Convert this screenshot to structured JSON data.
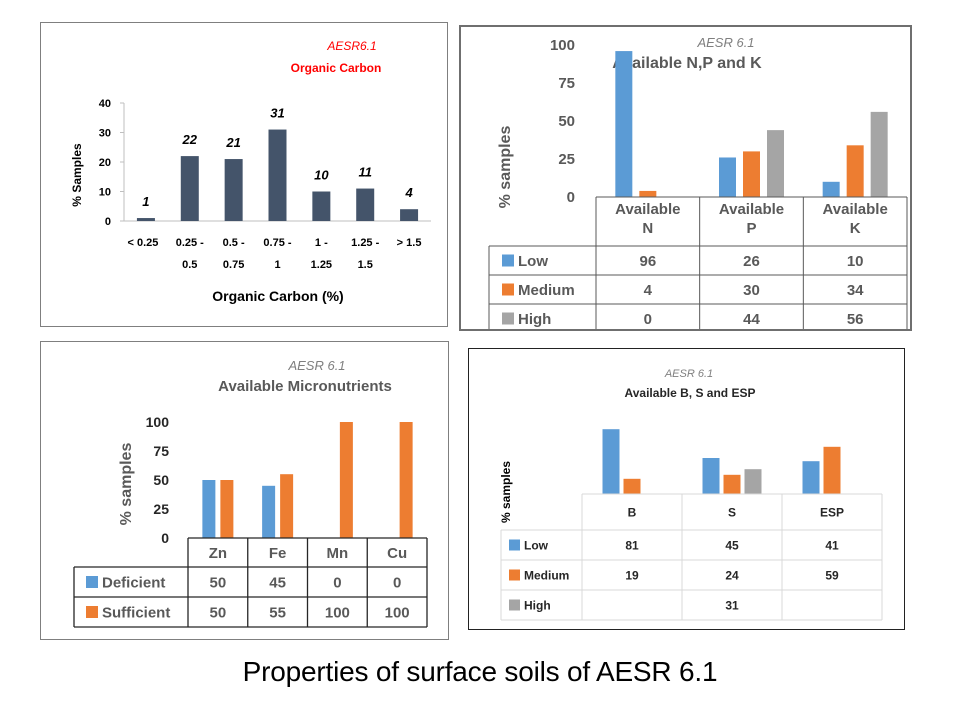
{
  "caption": "Properties of surface soils of AESR 6.1",
  "colors": {
    "low": "#5b9bd5",
    "medium": "#ed7d31",
    "high": "#a5a5a5",
    "navy": "#44546a",
    "red": "#ff0000"
  },
  "chart_data": [
    {
      "id": "organic-carbon",
      "type": "bar",
      "title": "Organic Carbon",
      "subtitle": "AESR6.1",
      "xlabel": "Organic Carbon (%)",
      "ylabel": "% Samples",
      "ylim": [
        0,
        40
      ],
      "yticks": [
        0,
        10,
        20,
        30,
        40
      ],
      "categories": [
        "< 0.25",
        "0.25 - 0.5",
        "0.5 - 0.75",
        "0.75 - 1",
        "1 - 1.25",
        "1.25 - 1.5",
        "> 1.5"
      ],
      "category_lines": [
        [
          "< 0.25"
        ],
        [
          "0.25 -",
          "0.5"
        ],
        [
          "0.5 -",
          "0.75"
        ],
        [
          "0.75 -",
          "1"
        ],
        [
          "1 -",
          "1.25"
        ],
        [
          "1.25 -",
          "1.5"
        ],
        [
          "> 1.5"
        ]
      ],
      "values": [
        1,
        22,
        21,
        31,
        10,
        11,
        4
      ],
      "data_labels": [
        "1",
        "22",
        "21",
        "31",
        "10",
        "11",
        "4"
      ]
    },
    {
      "id": "npk",
      "type": "bar",
      "title": "Available N,P and K",
      "subtitle": "AESR 6.1",
      "ylabel": "% samples",
      "ylim": [
        0,
        100
      ],
      "yticks": [
        0,
        25,
        50,
        75,
        100
      ],
      "categories": [
        "Available N",
        "Available P",
        "Available K"
      ],
      "category_lines": [
        [
          "Available",
          "N"
        ],
        [
          "Available",
          "P"
        ],
        [
          "Available",
          "K"
        ]
      ],
      "series": [
        {
          "name": "Low",
          "values": [
            96,
            26,
            10
          ],
          "labels": [
            "96",
            "26",
            "10"
          ]
        },
        {
          "name": "Medium",
          "values": [
            4,
            30,
            34
          ],
          "labels": [
            "4",
            "30",
            "34"
          ]
        },
        {
          "name": "High",
          "values": [
            0,
            44,
            56
          ],
          "labels": [
            "0",
            "44",
            "56"
          ]
        }
      ],
      "legend": "data-table"
    },
    {
      "id": "micronutrients",
      "type": "bar",
      "title": "Available Micronutrients",
      "subtitle": "AESR 6.1",
      "ylabel": "% samples",
      "ylim": [
        0,
        100
      ],
      "yticks": [
        0,
        25,
        50,
        75,
        100
      ],
      "categories": [
        "Zn",
        "Fe",
        "Mn",
        "Cu"
      ],
      "category_lines": [
        [
          "Zn"
        ],
        [
          "Fe"
        ],
        [
          "Mn"
        ],
        [
          "Cu"
        ]
      ],
      "series": [
        {
          "name": "Deficient",
          "values": [
            50,
            45,
            0,
            0
          ],
          "labels": [
            "50",
            "45",
            "0",
            "0"
          ]
        },
        {
          "name": "Sufficient",
          "values": [
            50,
            55,
            100,
            100
          ],
          "labels": [
            "50",
            "55",
            "100",
            "100"
          ]
        }
      ],
      "legend": "data-table"
    },
    {
      "id": "bs-esp",
      "type": "bar",
      "title": "Available B, S and ESP",
      "subtitle": "AESR 6.1",
      "ylabel": "% samples",
      "ylim": [
        0,
        100
      ],
      "categories": [
        "B",
        "S",
        "ESP"
      ],
      "category_lines": [
        [
          "B"
        ],
        [
          "S"
        ],
        [
          "ESP"
        ]
      ],
      "series": [
        {
          "name": "Low",
          "values": [
            81,
            45,
            41
          ],
          "labels": [
            "81",
            "45",
            "41"
          ]
        },
        {
          "name": "Medium",
          "values": [
            19,
            24,
            59
          ],
          "labels": [
            "19",
            "24",
            "59"
          ]
        },
        {
          "name": "High",
          "values": [
            0,
            31,
            0
          ],
          "labels": [
            "",
            "31",
            ""
          ]
        }
      ],
      "legend": "data-table"
    }
  ]
}
